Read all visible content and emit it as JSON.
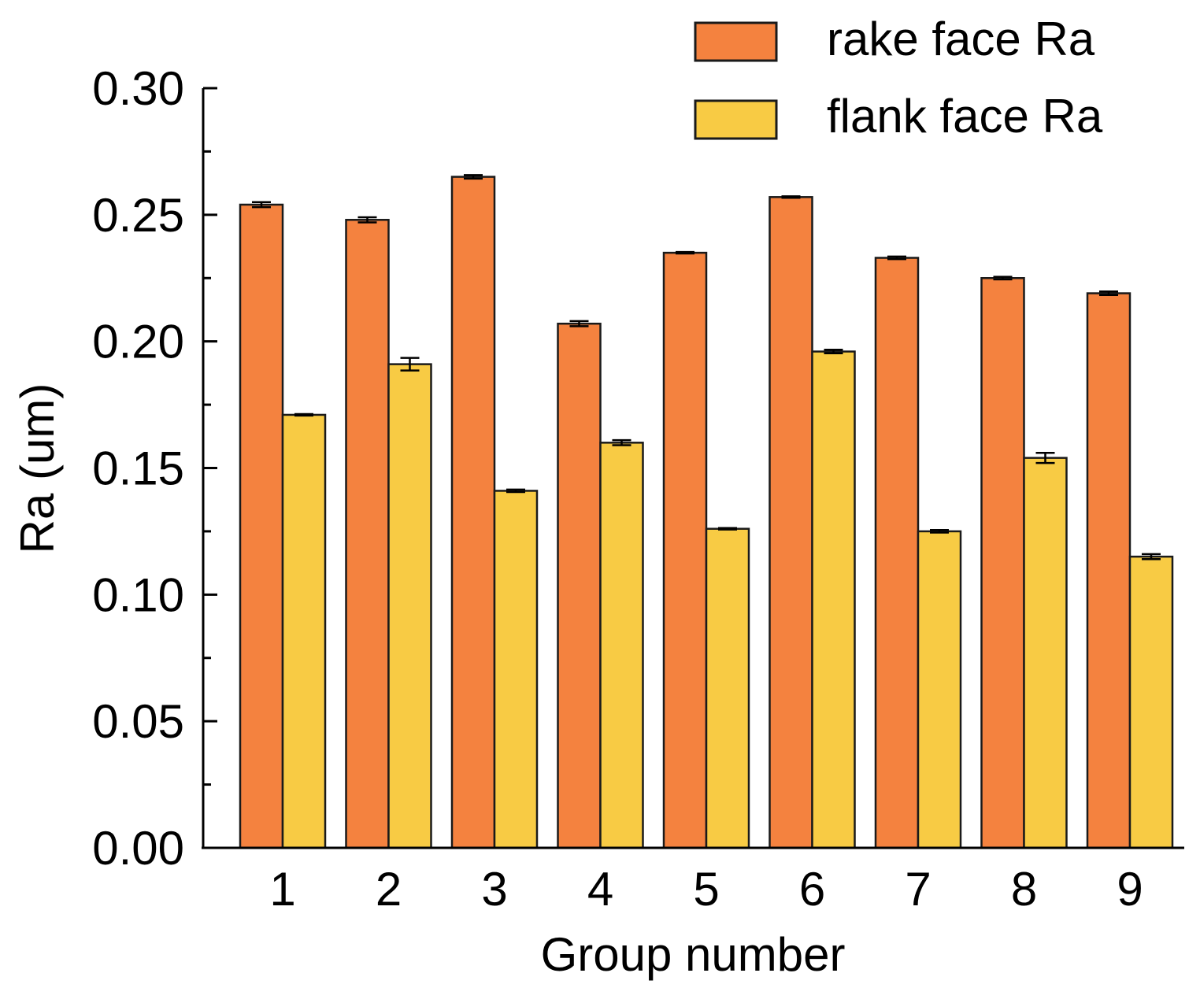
{
  "chart_data": {
    "type": "bar",
    "title": "",
    "xlabel": "Group number",
    "ylabel": "Ra (um)",
    "categories": [
      "1",
      "2",
      "3",
      "4",
      "5",
      "6",
      "7",
      "8",
      "9"
    ],
    "ylim": [
      0,
      0.3
    ],
    "yticks": [
      "0.00",
      "0.05",
      "0.10",
      "0.15",
      "0.20",
      "0.25",
      "0.30"
    ],
    "ytick_values": [
      0,
      0.05,
      0.1,
      0.15,
      0.2,
      0.25,
      0.3
    ],
    "grid": false,
    "legend_position": "top-right",
    "series": [
      {
        "name": "rake face Ra",
        "color": "#F4823F",
        "values": [
          0.254,
          0.248,
          0.265,
          0.207,
          0.235,
          0.257,
          0.233,
          0.225,
          0.219
        ],
        "errors": [
          0.001,
          0.001,
          0.0007,
          0.001,
          0.0003,
          0.0003,
          0.0005,
          0.0005,
          0.0007
        ]
      },
      {
        "name": "flank face Ra",
        "color": "#F8CB44",
        "values": [
          0.171,
          0.191,
          0.141,
          0.16,
          0.126,
          0.196,
          0.125,
          0.154,
          0.115
        ],
        "errors": [
          0.0003,
          0.0025,
          0.0005,
          0.001,
          0.0003,
          0.0007,
          0.0005,
          0.002,
          0.001
        ]
      }
    ]
  }
}
